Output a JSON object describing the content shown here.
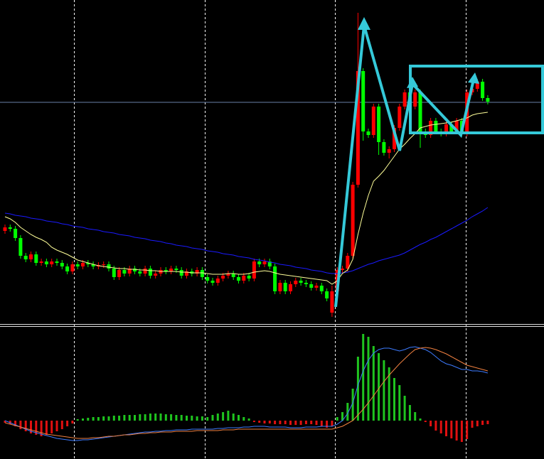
{
  "chart_data": [
    {
      "type": "candlestick",
      "up_color": "#ff0000",
      "down_color": "#00ff00",
      "ylim": [
        0,
        458
      ],
      "price_line": 314,
      "open": [
        133,
        138,
        136,
        123,
        98,
        93,
        100,
        88,
        90,
        86,
        90,
        88,
        83,
        76,
        86,
        83,
        88,
        86,
        83,
        85,
        86,
        80,
        68,
        78,
        73,
        80,
        76,
        73,
        80,
        70,
        73,
        78,
        76,
        80,
        78,
        70,
        76,
        73,
        78,
        68,
        63,
        60,
        66,
        70,
        73,
        68,
        63,
        70,
        66,
        90,
        86,
        90,
        83,
        48,
        60,
        48,
        58,
        63,
        60,
        58,
        53,
        56,
        48,
        18,
        48,
        78,
        80,
        98,
        198,
        358,
        273,
        268,
        308,
        258,
        243,
        248,
        278,
        308,
        328,
        308,
        328,
        273,
        268,
        288,
        273,
        270,
        283,
        273,
        288,
        270,
        328,
        333,
        343,
        320
      ],
      "high": [
        142,
        142,
        140,
        127,
        102,
        104,
        104,
        94,
        94,
        94,
        94,
        92,
        87,
        90,
        90,
        92,
        92,
        90,
        89,
        90,
        90,
        84,
        82,
        82,
        84,
        84,
        80,
        84,
        84,
        77,
        82,
        82,
        84,
        84,
        82,
        80,
        80,
        82,
        82,
        72,
        67,
        70,
        74,
        77,
        77,
        72,
        74,
        74,
        94,
        94,
        94,
        94,
        87,
        64,
        64,
        62,
        67,
        67,
        64,
        62,
        60,
        60,
        52,
        56,
        82,
        84,
        102,
        202,
        440,
        362,
        277,
        312,
        312,
        262,
        252,
        282,
        312,
        332,
        332,
        332,
        332,
        277,
        292,
        292,
        277,
        287,
        287,
        292,
        292,
        332,
        337,
        347,
        347,
        324
      ],
      "low": [
        129,
        132,
        119,
        94,
        89,
        89,
        84,
        84,
        82,
        82,
        84,
        79,
        72,
        72,
        79,
        79,
        82,
        79,
        79,
        81,
        76,
        64,
        64,
        69,
        69,
        72,
        69,
        69,
        66,
        66,
        69,
        72,
        72,
        74,
        66,
        66,
        69,
        69,
        64,
        59,
        56,
        56,
        62,
        66,
        64,
        59,
        59,
        62,
        62,
        82,
        82,
        79,
        44,
        44,
        44,
        44,
        54,
        56,
        54,
        49,
        49,
        44,
        34,
        12,
        44,
        74,
        76,
        94,
        194,
        260,
        264,
        264,
        240,
        239,
        235,
        244,
        274,
        304,
        304,
        304,
        250,
        264,
        264,
        269,
        266,
        266,
        269,
        269,
        266,
        266,
        324,
        329,
        316,
        311
      ],
      "close": [
        138,
        136,
        123,
        98,
        93,
        100,
        88,
        90,
        86,
        90,
        88,
        83,
        76,
        86,
        83,
        88,
        86,
        83,
        85,
        86,
        80,
        68,
        78,
        73,
        80,
        76,
        73,
        80,
        70,
        73,
        78,
        76,
        80,
        78,
        70,
        76,
        73,
        78,
        68,
        63,
        60,
        66,
        70,
        73,
        68,
        63,
        70,
        66,
        90,
        86,
        90,
        83,
        48,
        60,
        48,
        58,
        63,
        60,
        58,
        53,
        56,
        48,
        38,
        48,
        78,
        80,
        98,
        198,
        358,
        273,
        268,
        308,
        258,
        243,
        248,
        278,
        308,
        328,
        308,
        328,
        273,
        268,
        288,
        273,
        270,
        283,
        273,
        288,
        270,
        328,
        333,
        343,
        320,
        315
      ],
      "lines": [
        {
          "color": "#1a1aff",
          "values": [
            158,
            157,
            155,
            154,
            153,
            151,
            150,
            149,
            147,
            146,
            145,
            143,
            142,
            140,
            139,
            138,
            136,
            135,
            134,
            132,
            131,
            130,
            128,
            127,
            126,
            124,
            123,
            122,
            120,
            119,
            118,
            116,
            115,
            113,
            112,
            111,
            109,
            108,
            107,
            105,
            104,
            103,
            101,
            100,
            99,
            97,
            96,
            95,
            93,
            92,
            91,
            89,
            88,
            86,
            85,
            84,
            82,
            81,
            80,
            78,
            77,
            76,
            74,
            73,
            73,
            74,
            75,
            77,
            80,
            83,
            86,
            88,
            91,
            93,
            95,
            97,
            99,
            102,
            106,
            110,
            114,
            117,
            121,
            124,
            128,
            132,
            136,
            140,
            144,
            148,
            153,
            157,
            161,
            166
          ]
        },
        {
          "color": "#ffff99",
          "values": [
            153,
            150,
            145,
            138,
            133,
            128,
            124,
            121,
            117,
            110,
            106,
            103,
            100,
            96,
            92,
            90,
            88,
            86,
            84,
            83,
            82,
            81,
            80,
            80,
            79,
            79,
            78,
            78,
            77,
            77,
            76,
            76,
            76,
            76,
            75,
            75,
            74,
            74,
            74,
            73,
            72,
            72,
            72,
            73,
            73,
            72,
            72,
            73,
            75,
            76,
            77,
            76,
            74,
            72,
            71,
            70,
            69,
            68,
            67,
            66,
            65,
            64,
            63,
            58,
            63,
            73,
            78,
            93,
            128,
            158,
            183,
            203,
            210,
            218,
            228,
            238,
            248,
            255,
            263,
            270,
            278,
            280,
            282,
            283,
            284,
            285,
            286,
            288,
            290,
            292,
            296,
            298,
            299,
            300
          ]
        }
      ]
    },
    {
      "type": "macd",
      "positive_color": "#1fc41f",
      "negative_color": "#e01010",
      "ylim": [
        -54,
        132
      ],
      "values": [
        -3,
        -5,
        -8,
        -12,
        -15,
        -18,
        -20,
        -22,
        -20,
        -18,
        -15,
        -12,
        -8,
        -4,
        2,
        3,
        4,
        5,
        5,
        6,
        6,
        7,
        7,
        8,
        8,
        8,
        9,
        9,
        10,
        10,
        10,
        9,
        9,
        8,
        8,
        7,
        7,
        6,
        6,
        5,
        8,
        10,
        12,
        14,
        10,
        8,
        5,
        3,
        -2,
        -3,
        -4,
        -4,
        -5,
        -5,
        -5,
        -6,
        -6,
        -6,
        -5,
        -5,
        -6,
        -8,
        -10,
        -8,
        5,
        12,
        25,
        45,
        90,
        122,
        118,
        105,
        95,
        85,
        75,
        60,
        50,
        35,
        22,
        12,
        3,
        -2,
        -8,
        -14,
        -18,
        -22,
        -25,
        -28,
        -30,
        -26,
        -10,
        -8,
        -6,
        -5
      ],
      "lines": [
        {
          "color": "#3d7bff",
          "values": [
            0,
            -3,
            -6,
            -9,
            -12,
            -15,
            -17,
            -19,
            -21,
            -23,
            -25,
            -26,
            -27,
            -28,
            -28,
            -27,
            -27,
            -26,
            -25,
            -24,
            -23,
            -22,
            -21,
            -20,
            -19,
            -18,
            -17,
            -16,
            -16,
            -15,
            -15,
            -14,
            -14,
            -13,
            -13,
            -13,
            -12,
            -12,
            -12,
            -12,
            -12,
            -11,
            -11,
            -10,
            -10,
            -10,
            -9,
            -9,
            -8,
            -8,
            -8,
            -9,
            -9,
            -9,
            -9,
            -10,
            -10,
            -10,
            -9,
            -9,
            -9,
            -8,
            -8,
            -8,
            -5,
            0,
            10,
            25,
            50,
            70,
            85,
            95,
            100,
            102,
            102,
            100,
            98,
            100,
            103,
            104,
            102,
            100,
            96,
            90,
            84,
            80,
            78,
            75,
            72,
            72,
            70,
            70,
            69,
            67
          ]
        },
        {
          "color": "#f08040",
          "values": [
            -3,
            -5,
            -7,
            -9,
            -11,
            -13,
            -15,
            -17,
            -19,
            -20,
            -21,
            -22,
            -23,
            -24,
            -25,
            -25,
            -25,
            -24,
            -24,
            -23,
            -22,
            -22,
            -21,
            -20,
            -20,
            -19,
            -18,
            -18,
            -17,
            -17,
            -16,
            -16,
            -16,
            -15,
            -15,
            -15,
            -15,
            -14,
            -14,
            -14,
            -14,
            -14,
            -13,
            -13,
            -13,
            -12,
            -12,
            -12,
            -12,
            -12,
            -12,
            -12,
            -12,
            -12,
            -12,
            -12,
            -12,
            -12,
            -12,
            -12,
            -12,
            -12,
            -12,
            -12,
            -10,
            -8,
            -4,
            0,
            8,
            16,
            25,
            35,
            45,
            55,
            64,
            72,
            80,
            87,
            94,
            100,
            102,
            103,
            102,
            100,
            97,
            94,
            90,
            86,
            82,
            78,
            76,
            74,
            72,
            70
          ]
        }
      ]
    }
  ]
}
